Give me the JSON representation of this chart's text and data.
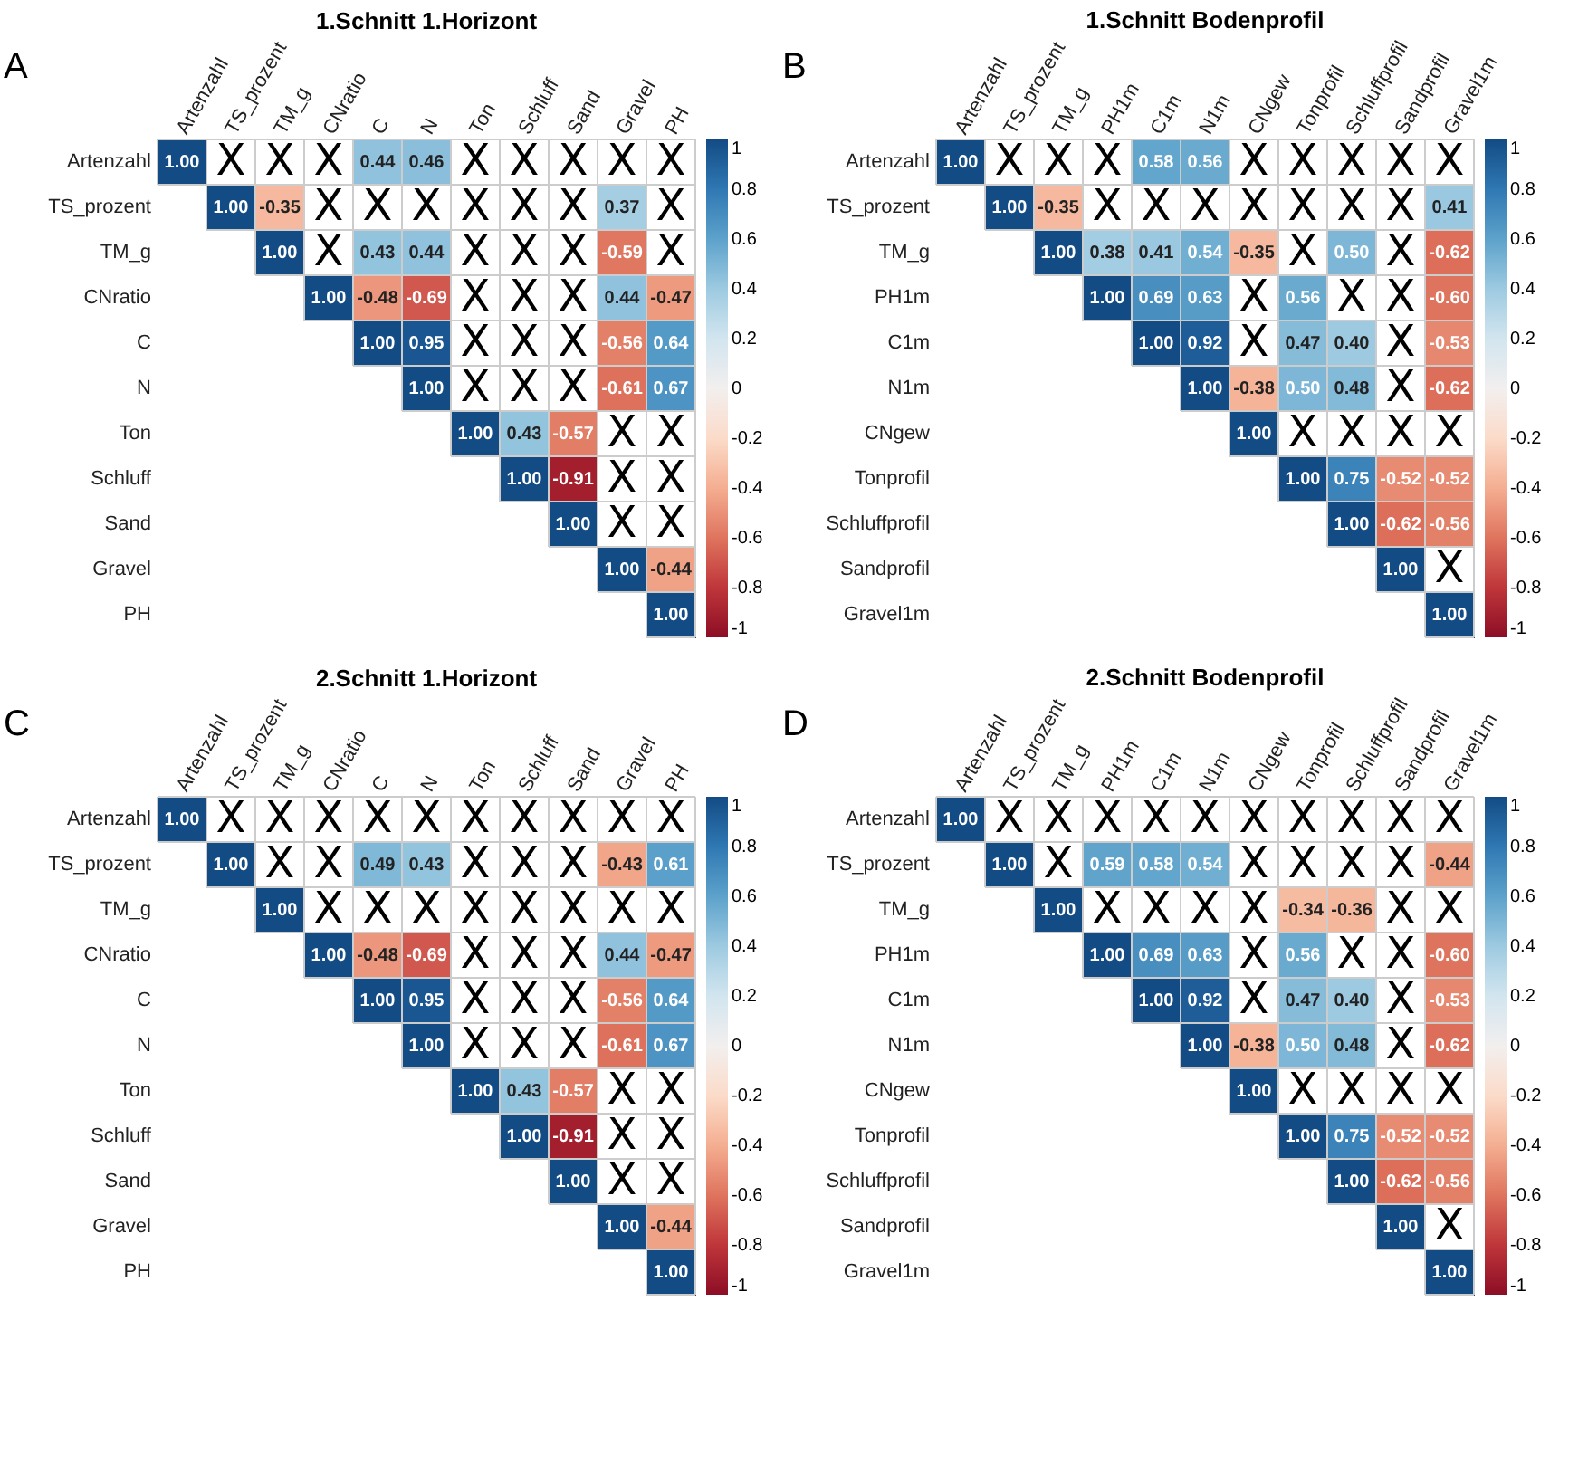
{
  "chart_data": [
    {
      "type": "heatmap",
      "title": "1.Schnitt 1.Horizont",
      "annotations": [
        "A"
      ],
      "data_labels": true,
      "grid": true,
      "categories": [
        "Artenzahl",
        "TS_prozent",
        "TM_g",
        "CNratio",
        "C",
        "N",
        "Ton",
        "Schluff",
        "Sand",
        "Gravel",
        "PH"
      ],
      "y_categories": [
        "Artenzahl",
        "TS_prozent",
        "TM_g",
        "CNratio",
        "C",
        "N",
        "Ton",
        "Schluff",
        "Sand",
        "Gravel",
        "PH"
      ],
      "cells": [
        [
          1.0,
          null,
          null,
          null,
          0.44,
          0.46,
          null,
          null,
          null,
          null,
          null
        ],
        [
          null,
          1.0,
          -0.35,
          null,
          null,
          null,
          null,
          null,
          null,
          0.37,
          null
        ],
        [
          null,
          null,
          1.0,
          null,
          0.43,
          0.44,
          null,
          null,
          null,
          -0.59,
          null
        ],
        [
          null,
          null,
          null,
          1.0,
          -0.48,
          -0.69,
          null,
          null,
          null,
          0.44,
          -0.47
        ],
        [
          null,
          null,
          null,
          null,
          1.0,
          0.95,
          null,
          null,
          null,
          -0.56,
          0.64
        ],
        [
          null,
          null,
          null,
          null,
          null,
          1.0,
          null,
          null,
          null,
          -0.61,
          0.67
        ],
        [
          null,
          null,
          null,
          null,
          null,
          null,
          1.0,
          0.43,
          -0.57,
          null,
          null
        ],
        [
          null,
          null,
          null,
          null,
          null,
          null,
          null,
          1.0,
          -0.91,
          null,
          null
        ],
        [
          null,
          null,
          null,
          null,
          null,
          null,
          null,
          null,
          1.0,
          null,
          null
        ],
        [
          null,
          null,
          null,
          null,
          null,
          null,
          null,
          null,
          null,
          1.0,
          -0.44
        ],
        [
          null,
          null,
          null,
          null,
          null,
          null,
          null,
          null,
          null,
          null,
          1.0
        ]
      ],
      "cell_labels": [
        [
          "1.00",
          "X",
          "X",
          "X",
          "0.44",
          "0.46",
          "X",
          "X",
          "X",
          "X",
          "X"
        ],
        [
          null,
          "1.00",
          "-0.35",
          "X",
          "X",
          "X",
          "X",
          "X",
          "X",
          "0.37",
          "X"
        ],
        [
          null,
          null,
          "1.00",
          "X",
          "0.43",
          "0.44",
          "X",
          "X",
          "X",
          "-0.59",
          "X"
        ],
        [
          null,
          null,
          null,
          "1.00",
          "-0.48",
          "-0.69",
          "X",
          "X",
          "X",
          "0.44",
          "-0.47"
        ],
        [
          null,
          null,
          null,
          null,
          "1.00",
          "0.95",
          "X",
          "X",
          "X",
          "-0.56",
          "0.64"
        ],
        [
          null,
          null,
          null,
          null,
          null,
          "1.00",
          "X",
          "X",
          "X",
          "-0.61",
          "0.67"
        ],
        [
          null,
          null,
          null,
          null,
          null,
          null,
          "1.00",
          "0.43",
          "-0.57",
          "X",
          "X"
        ],
        [
          null,
          null,
          null,
          null,
          null,
          null,
          null,
          "1.00",
          "-0.91",
          "X",
          "X"
        ],
        [
          null,
          null,
          null,
          null,
          null,
          null,
          null,
          null,
          "1.00",
          "X",
          "X"
        ],
        [
          null,
          null,
          null,
          null,
          null,
          null,
          null,
          null,
          null,
          "1.00",
          "-0.44"
        ],
        [
          null,
          null,
          null,
          null,
          null,
          null,
          null,
          null,
          null,
          null,
          "1.00"
        ]
      ],
      "clim": [
        -1,
        1
      ],
      "cticks": [
        -1,
        -0.8,
        -0.6,
        -0.4,
        -0.2,
        0,
        0.2,
        0.4,
        0.6,
        0.8,
        1
      ]
    },
    {
      "type": "heatmap",
      "title": "1.Schnitt Bodenprofil",
      "annotations": [
        "B"
      ],
      "data_labels": true,
      "grid": true,
      "categories": [
        "Artenzahl",
        "TS_prozent",
        "TM_g",
        "PH1m",
        "C1m",
        "N1m",
        "CNgew",
        "Tonprofil",
        "Schluffprofil",
        "Sandprofil",
        "Gravel1m"
      ],
      "y_categories": [
        "Artenzahl",
        "TS_prozent",
        "TM_g",
        "PH1m",
        "C1m",
        "N1m",
        "CNgew",
        "Tonprofil",
        "Schluffprofil",
        "Sandprofil",
        "Gravel1m"
      ],
      "cells": [
        [
          1.0,
          null,
          null,
          null,
          0.58,
          0.56,
          null,
          null,
          null,
          null,
          null
        ],
        [
          null,
          1.0,
          -0.35,
          null,
          null,
          null,
          null,
          null,
          null,
          null,
          0.41
        ],
        [
          null,
          null,
          1.0,
          0.38,
          0.41,
          0.54,
          -0.35,
          null,
          0.5,
          null,
          -0.62
        ],
        [
          null,
          null,
          null,
          1.0,
          0.69,
          0.63,
          null,
          0.56,
          null,
          null,
          -0.6
        ],
        [
          null,
          null,
          null,
          null,
          1.0,
          0.92,
          null,
          0.47,
          0.4,
          null,
          -0.53
        ],
        [
          null,
          null,
          null,
          null,
          null,
          1.0,
          -0.38,
          0.5,
          0.48,
          null,
          -0.62
        ],
        [
          null,
          null,
          null,
          null,
          null,
          null,
          1.0,
          null,
          null,
          null,
          null
        ],
        [
          null,
          null,
          null,
          null,
          null,
          null,
          null,
          1.0,
          0.75,
          -0.52,
          -0.52
        ],
        [
          null,
          null,
          null,
          null,
          null,
          null,
          null,
          null,
          1.0,
          -0.62,
          -0.56
        ],
        [
          null,
          null,
          null,
          null,
          null,
          null,
          null,
          null,
          null,
          1.0,
          null
        ],
        [
          null,
          null,
          null,
          null,
          null,
          null,
          null,
          null,
          null,
          null,
          1.0
        ]
      ],
      "cell_labels": [
        [
          "1.00",
          "X",
          "X",
          "X",
          "0.58",
          "0.56",
          "X",
          "X",
          "X",
          "X",
          "X"
        ],
        [
          null,
          "1.00",
          "-0.35",
          "X",
          "X",
          "X",
          "X",
          "X",
          "X",
          "X",
          "0.41"
        ],
        [
          null,
          null,
          "1.00",
          "0.38",
          "0.41",
          "0.54",
          "-0.35",
          "X",
          "0.50",
          "X",
          "-0.62"
        ],
        [
          null,
          null,
          null,
          "1.00",
          "0.69",
          "0.63",
          "X",
          "0.56",
          "X",
          "X",
          "-0.60"
        ],
        [
          null,
          null,
          null,
          null,
          "1.00",
          "0.92",
          "X",
          "0.47",
          "0.40",
          "X",
          "-0.53"
        ],
        [
          null,
          null,
          null,
          null,
          null,
          "1.00",
          "-0.38",
          "0.50",
          "0.48",
          "X",
          "-0.62"
        ],
        [
          null,
          null,
          null,
          null,
          null,
          null,
          "1.00",
          "X",
          "X",
          "X",
          "X"
        ],
        [
          null,
          null,
          null,
          null,
          null,
          null,
          null,
          "1.00",
          "0.75",
          "-0.52",
          "-0.52"
        ],
        [
          null,
          null,
          null,
          null,
          null,
          null,
          null,
          null,
          "1.00",
          "-0.62",
          "-0.56"
        ],
        [
          null,
          null,
          null,
          null,
          null,
          null,
          null,
          null,
          null,
          "1.00",
          "X"
        ],
        [
          null,
          null,
          null,
          null,
          null,
          null,
          null,
          null,
          null,
          null,
          "1.00"
        ]
      ],
      "clim": [
        -1,
        1
      ],
      "cticks": [
        -1,
        -0.8,
        -0.6,
        -0.4,
        -0.2,
        0,
        0.2,
        0.4,
        0.6,
        0.8,
        1
      ]
    },
    {
      "type": "heatmap",
      "title": "2.Schnitt 1.Horizont",
      "annotations": [
        "C"
      ],
      "data_labels": true,
      "grid": true,
      "categories": [
        "Artenzahl",
        "TS_prozent",
        "TM_g",
        "CNratio",
        "C",
        "N",
        "Ton",
        "Schluff",
        "Sand",
        "Gravel",
        "PH"
      ],
      "y_categories": [
        "Artenzahl",
        "TS_prozent",
        "TM_g",
        "CNratio",
        "C",
        "N",
        "Ton",
        "Schluff",
        "Sand",
        "Gravel",
        "PH"
      ],
      "cells": [
        [
          1.0,
          null,
          null,
          null,
          null,
          null,
          null,
          null,
          null,
          null,
          null
        ],
        [
          null,
          1.0,
          null,
          null,
          0.49,
          0.43,
          null,
          null,
          null,
          -0.43,
          0.61
        ],
        [
          null,
          null,
          1.0,
          null,
          null,
          null,
          null,
          null,
          null,
          null,
          null
        ],
        [
          null,
          null,
          null,
          1.0,
          -0.48,
          -0.69,
          null,
          null,
          null,
          0.44,
          -0.47
        ],
        [
          null,
          null,
          null,
          null,
          1.0,
          0.95,
          null,
          null,
          null,
          -0.56,
          0.64
        ],
        [
          null,
          null,
          null,
          null,
          null,
          1.0,
          null,
          null,
          null,
          -0.61,
          0.67
        ],
        [
          null,
          null,
          null,
          null,
          null,
          null,
          1.0,
          0.43,
          -0.57,
          null,
          null
        ],
        [
          null,
          null,
          null,
          null,
          null,
          null,
          null,
          1.0,
          -0.91,
          null,
          null
        ],
        [
          null,
          null,
          null,
          null,
          null,
          null,
          null,
          null,
          1.0,
          null,
          null
        ],
        [
          null,
          null,
          null,
          null,
          null,
          null,
          null,
          null,
          null,
          1.0,
          -0.44
        ],
        [
          null,
          null,
          null,
          null,
          null,
          null,
          null,
          null,
          null,
          null,
          1.0
        ]
      ],
      "cell_labels": [
        [
          "1.00",
          "X",
          "X",
          "X",
          "X",
          "X",
          "X",
          "X",
          "X",
          "X",
          "X"
        ],
        [
          null,
          "1.00",
          "X",
          "X",
          "0.49",
          "0.43",
          "X",
          "X",
          "X",
          "-0.43",
          "0.61"
        ],
        [
          null,
          null,
          "1.00",
          "X",
          "X",
          "X",
          "X",
          "X",
          "X",
          "X",
          "X"
        ],
        [
          null,
          null,
          null,
          "1.00",
          "-0.48",
          "-0.69",
          "X",
          "X",
          "X",
          "0.44",
          "-0.47"
        ],
        [
          null,
          null,
          null,
          null,
          "1.00",
          "0.95",
          "X",
          "X",
          "X",
          "-0.56",
          "0.64"
        ],
        [
          null,
          null,
          null,
          null,
          null,
          "1.00",
          "X",
          "X",
          "X",
          "-0.61",
          "0.67"
        ],
        [
          null,
          null,
          null,
          null,
          null,
          null,
          "1.00",
          "0.43",
          "-0.57",
          "X",
          "X"
        ],
        [
          null,
          null,
          null,
          null,
          null,
          null,
          null,
          "1.00",
          "-0.91",
          "X",
          "X"
        ],
        [
          null,
          null,
          null,
          null,
          null,
          null,
          null,
          null,
          "1.00",
          "X",
          "X"
        ],
        [
          null,
          null,
          null,
          null,
          null,
          null,
          null,
          null,
          null,
          "1.00",
          "-0.44"
        ],
        [
          null,
          null,
          null,
          null,
          null,
          null,
          null,
          null,
          null,
          null,
          "1.00"
        ]
      ],
      "clim": [
        -1,
        1
      ],
      "cticks": [
        -1,
        -0.8,
        -0.6,
        -0.4,
        -0.2,
        0,
        0.2,
        0.4,
        0.6,
        0.8,
        1
      ]
    },
    {
      "type": "heatmap",
      "title": "2.Schnitt Bodenprofil",
      "annotations": [
        "D"
      ],
      "data_labels": true,
      "grid": true,
      "categories": [
        "Artenzahl",
        "TS_prozent",
        "TM_g",
        "PH1m",
        "C1m",
        "N1m",
        "CNgew",
        "Tonprofil",
        "Schluffprofil",
        "Sandprofil",
        "Gravel1m"
      ],
      "y_categories": [
        "Artenzahl",
        "TS_prozent",
        "TM_g",
        "PH1m",
        "C1m",
        "N1m",
        "CNgew",
        "Tonprofil",
        "Schluffprofil",
        "Sandprofil",
        "Gravel1m"
      ],
      "cells": [
        [
          1.0,
          null,
          null,
          null,
          null,
          null,
          null,
          null,
          null,
          null,
          null
        ],
        [
          null,
          1.0,
          null,
          0.59,
          0.58,
          0.54,
          null,
          null,
          null,
          null,
          -0.44
        ],
        [
          null,
          null,
          1.0,
          null,
          null,
          null,
          null,
          -0.34,
          -0.36,
          null,
          null
        ],
        [
          null,
          null,
          null,
          1.0,
          0.69,
          0.63,
          null,
          0.56,
          null,
          null,
          -0.6
        ],
        [
          null,
          null,
          null,
          null,
          1.0,
          0.92,
          null,
          0.47,
          0.4,
          null,
          -0.53
        ],
        [
          null,
          null,
          null,
          null,
          null,
          1.0,
          -0.38,
          0.5,
          0.48,
          null,
          -0.62
        ],
        [
          null,
          null,
          null,
          null,
          null,
          null,
          1.0,
          null,
          null,
          null,
          null
        ],
        [
          null,
          null,
          null,
          null,
          null,
          null,
          null,
          1.0,
          0.75,
          -0.52,
          -0.52
        ],
        [
          null,
          null,
          null,
          null,
          null,
          null,
          null,
          null,
          1.0,
          -0.62,
          -0.56
        ],
        [
          null,
          null,
          null,
          null,
          null,
          null,
          null,
          null,
          null,
          1.0,
          null
        ],
        [
          null,
          null,
          null,
          null,
          null,
          null,
          null,
          null,
          null,
          null,
          1.0
        ]
      ],
      "cell_labels": [
        [
          "1.00",
          "X",
          "X",
          "X",
          "X",
          "X",
          "X",
          "X",
          "X",
          "X",
          "X"
        ],
        [
          null,
          "1.00",
          "X",
          "0.59",
          "0.58",
          "0.54",
          "X",
          "X",
          "X",
          "X",
          "-0.44"
        ],
        [
          null,
          null,
          "1.00",
          "X",
          "X",
          "X",
          "X",
          "-0.34",
          "-0.36",
          "X",
          "X"
        ],
        [
          null,
          null,
          null,
          "1.00",
          "0.69",
          "0.63",
          "X",
          "0.56",
          "X",
          "X",
          "-0.60"
        ],
        [
          null,
          null,
          null,
          null,
          "1.00",
          "0.92",
          "X",
          "0.47",
          "0.40",
          "X",
          "-0.53"
        ],
        [
          null,
          null,
          null,
          null,
          null,
          "1.00",
          "-0.38",
          "0.50",
          "0.48",
          "X",
          "-0.62"
        ],
        [
          null,
          null,
          null,
          null,
          null,
          null,
          "1.00",
          "X",
          "X",
          "X",
          "X"
        ],
        [
          null,
          null,
          null,
          null,
          null,
          null,
          null,
          "1.00",
          "0.75",
          "-0.52",
          "-0.52"
        ],
        [
          null,
          null,
          null,
          null,
          null,
          null,
          null,
          null,
          "1.00",
          "-0.62",
          "-0.56"
        ],
        [
          null,
          null,
          null,
          null,
          null,
          null,
          null,
          null,
          null,
          "1.00",
          "X"
        ],
        [
          null,
          null,
          null,
          null,
          null,
          null,
          null,
          null,
          null,
          null,
          "1.00"
        ]
      ],
      "clim": [
        -1,
        1
      ],
      "cticks": [
        -1,
        -0.8,
        -0.6,
        -0.4,
        -0.2,
        0,
        0.2,
        0.4,
        0.6,
        0.8,
        1
      ]
    }
  ]
}
